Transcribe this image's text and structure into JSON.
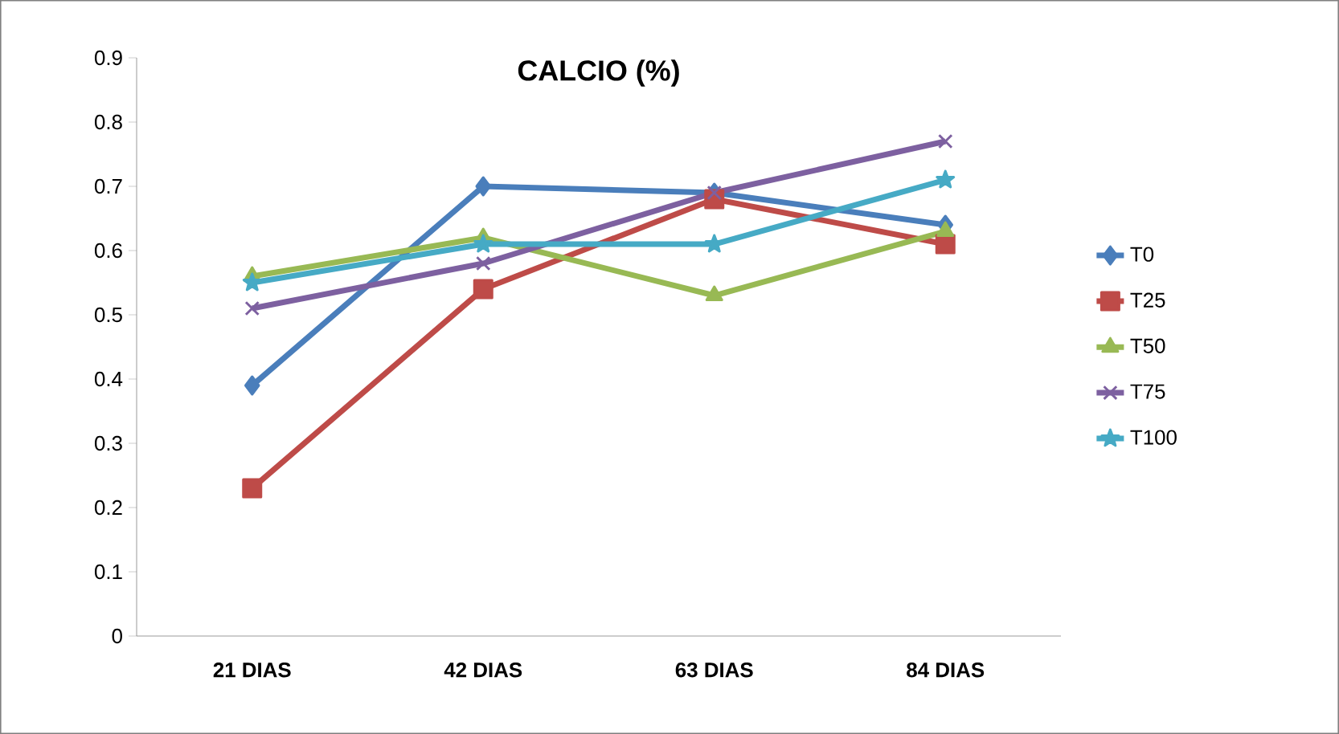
{
  "chart_data": {
    "type": "line",
    "title": "CALCIO (%)",
    "categories": [
      "21 DIAS",
      "42 DIAS",
      "63 DIAS",
      "84 DIAS"
    ],
    "series": [
      {
        "name": "T0",
        "color": "#4a7ebb",
        "marker": "diamond",
        "values": [
          0.39,
          0.7,
          0.69,
          0.64
        ]
      },
      {
        "name": "T25",
        "color": "#be4b48",
        "marker": "square",
        "values": [
          0.23,
          0.54,
          0.68,
          0.61
        ]
      },
      {
        "name": "T50",
        "color": "#98b954",
        "marker": "triangle",
        "values": [
          0.56,
          0.62,
          0.53,
          0.63
        ]
      },
      {
        "name": "T75",
        "color": "#7d60a0",
        "marker": "cross",
        "values": [
          0.51,
          0.58,
          0.69,
          0.77
        ]
      },
      {
        "name": "T100",
        "color": "#46aac5",
        "marker": "star",
        "values": [
          0.55,
          0.61,
          0.61,
          0.71
        ]
      }
    ],
    "ylim": [
      0,
      0.9
    ],
    "yticks": [
      0,
      0.1,
      0.2,
      0.3,
      0.4,
      0.5,
      0.6,
      0.7,
      0.8,
      0.9
    ],
    "legend": "right",
    "grid": false,
    "line_style": "solid"
  }
}
